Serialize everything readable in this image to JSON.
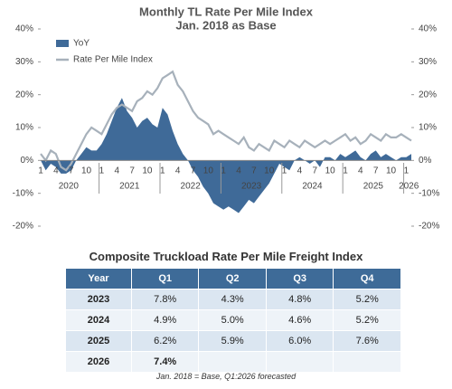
{
  "chart_data": {
    "type": "area-line",
    "title": [
      "Monthly TL Rate Per Mile Index",
      "Jan. 2018 as Base"
    ],
    "categories": [
      "1",
      null,
      null,
      "4",
      null,
      null,
      "7",
      null,
      null,
      "10",
      null,
      null,
      "1",
      null,
      null,
      "4",
      null,
      null,
      "7",
      null,
      null,
      "10",
      null,
      null,
      "1",
      null,
      null,
      "4",
      null,
      null,
      "7",
      null,
      null,
      "10",
      null,
      null,
      "1",
      null,
      null,
      "4",
      null,
      null,
      "7",
      null,
      null,
      "10",
      null,
      null,
      "1",
      null,
      null,
      "4",
      null,
      null,
      "7",
      null,
      null,
      "10",
      null,
      null,
      "1",
      null,
      null,
      "4",
      null,
      null,
      "7",
      null,
      null,
      "10",
      null,
      null,
      "1",
      null
    ],
    "years": [
      "2020",
      "2021",
      "2022",
      "2023",
      "2024",
      "2025",
      "2026"
    ],
    "series": [
      {
        "name": "YoY",
        "kind": "area",
        "color": "#3f6a98",
        "values": [
          0,
          -3,
          -1,
          -2,
          -4,
          -4,
          -3,
          0,
          2,
          4,
          3,
          3,
          5,
          8,
          12,
          16,
          19,
          15,
          13,
          10,
          12,
          13,
          11,
          10,
          16,
          14,
          9,
          5,
          2,
          0,
          -3,
          -5,
          -8,
          -10,
          -13,
          -14,
          -15,
          -14,
          -15,
          -16,
          -14,
          -12,
          -13,
          -11,
          -9,
          -7,
          -4,
          -1,
          -2,
          -3,
          0,
          1,
          0,
          -1,
          0,
          -2,
          1,
          1,
          0,
          2,
          1,
          2,
          3,
          1,
          0,
          2,
          3,
          1,
          2,
          1,
          0,
          1,
          1,
          2
        ]
      },
      {
        "name": "Rate Per Mile Index",
        "kind": "line",
        "axis": "y2",
        "color": "#a7b1bb",
        "values": [
          2,
          0,
          3,
          2,
          -2,
          -3,
          -1,
          2,
          5,
          8,
          10,
          9,
          8,
          11,
          14,
          16,
          17,
          16,
          15,
          18,
          19,
          21,
          20,
          22,
          25,
          26,
          27,
          23,
          21,
          18,
          15,
          13,
          12,
          11,
          8,
          9,
          8,
          7,
          6,
          5,
          7,
          4,
          3,
          5,
          4,
          3,
          6,
          5,
          4,
          6,
          5,
          4,
          6,
          5,
          4,
          5,
          6,
          5,
          6,
          7,
          8,
          6,
          7,
          5,
          6,
          8,
          7,
          6,
          8,
          7,
          7,
          8,
          7,
          6
        ]
      }
    ],
    "ylim": [
      -20,
      40
    ],
    "yticks": [
      {
        "value": -20,
        "label": "-20%"
      },
      {
        "value": -10,
        "label": "-10%"
      },
      {
        "value": 0,
        "label": "0%"
      },
      {
        "value": 10,
        "label": "10%"
      },
      {
        "value": 20,
        "label": "20%"
      },
      {
        "value": 30,
        "label": "30%"
      },
      {
        "value": 40,
        "label": "40%"
      }
    ],
    "y2lim": [
      -20,
      40
    ],
    "y2ticks": [
      {
        "value": -20,
        "label": "-20%"
      },
      {
        "value": -10,
        "label": "-10%"
      },
      {
        "value": 0,
        "label": "0%"
      },
      {
        "value": 10,
        "label": "10%"
      },
      {
        "value": 20,
        "label": "20%"
      },
      {
        "value": 30,
        "label": "30%"
      },
      {
        "value": 40,
        "label": "40%"
      }
    ],
    "legend": "upper left"
  },
  "table": {
    "title": "Composite Truckload Rate Per Mile Freight Index",
    "header": [
      "Year",
      "Q1",
      "Q2",
      "Q3",
      "Q4"
    ],
    "rows": [
      [
        "2023",
        "7.8%",
        "4.3%",
        "4.8%",
        "5.2%"
      ],
      [
        "2024",
        "4.9%",
        "5.0%",
        "4.6%",
        "5.2%"
      ],
      [
        "2025",
        "6.2%",
        "5.9%",
        "6.0%",
        "7.6%"
      ],
      [
        "2026",
        "7.4%"
      ]
    ],
    "note": "Jan. 2018 = Base, Q1:2026 forecasted"
  }
}
